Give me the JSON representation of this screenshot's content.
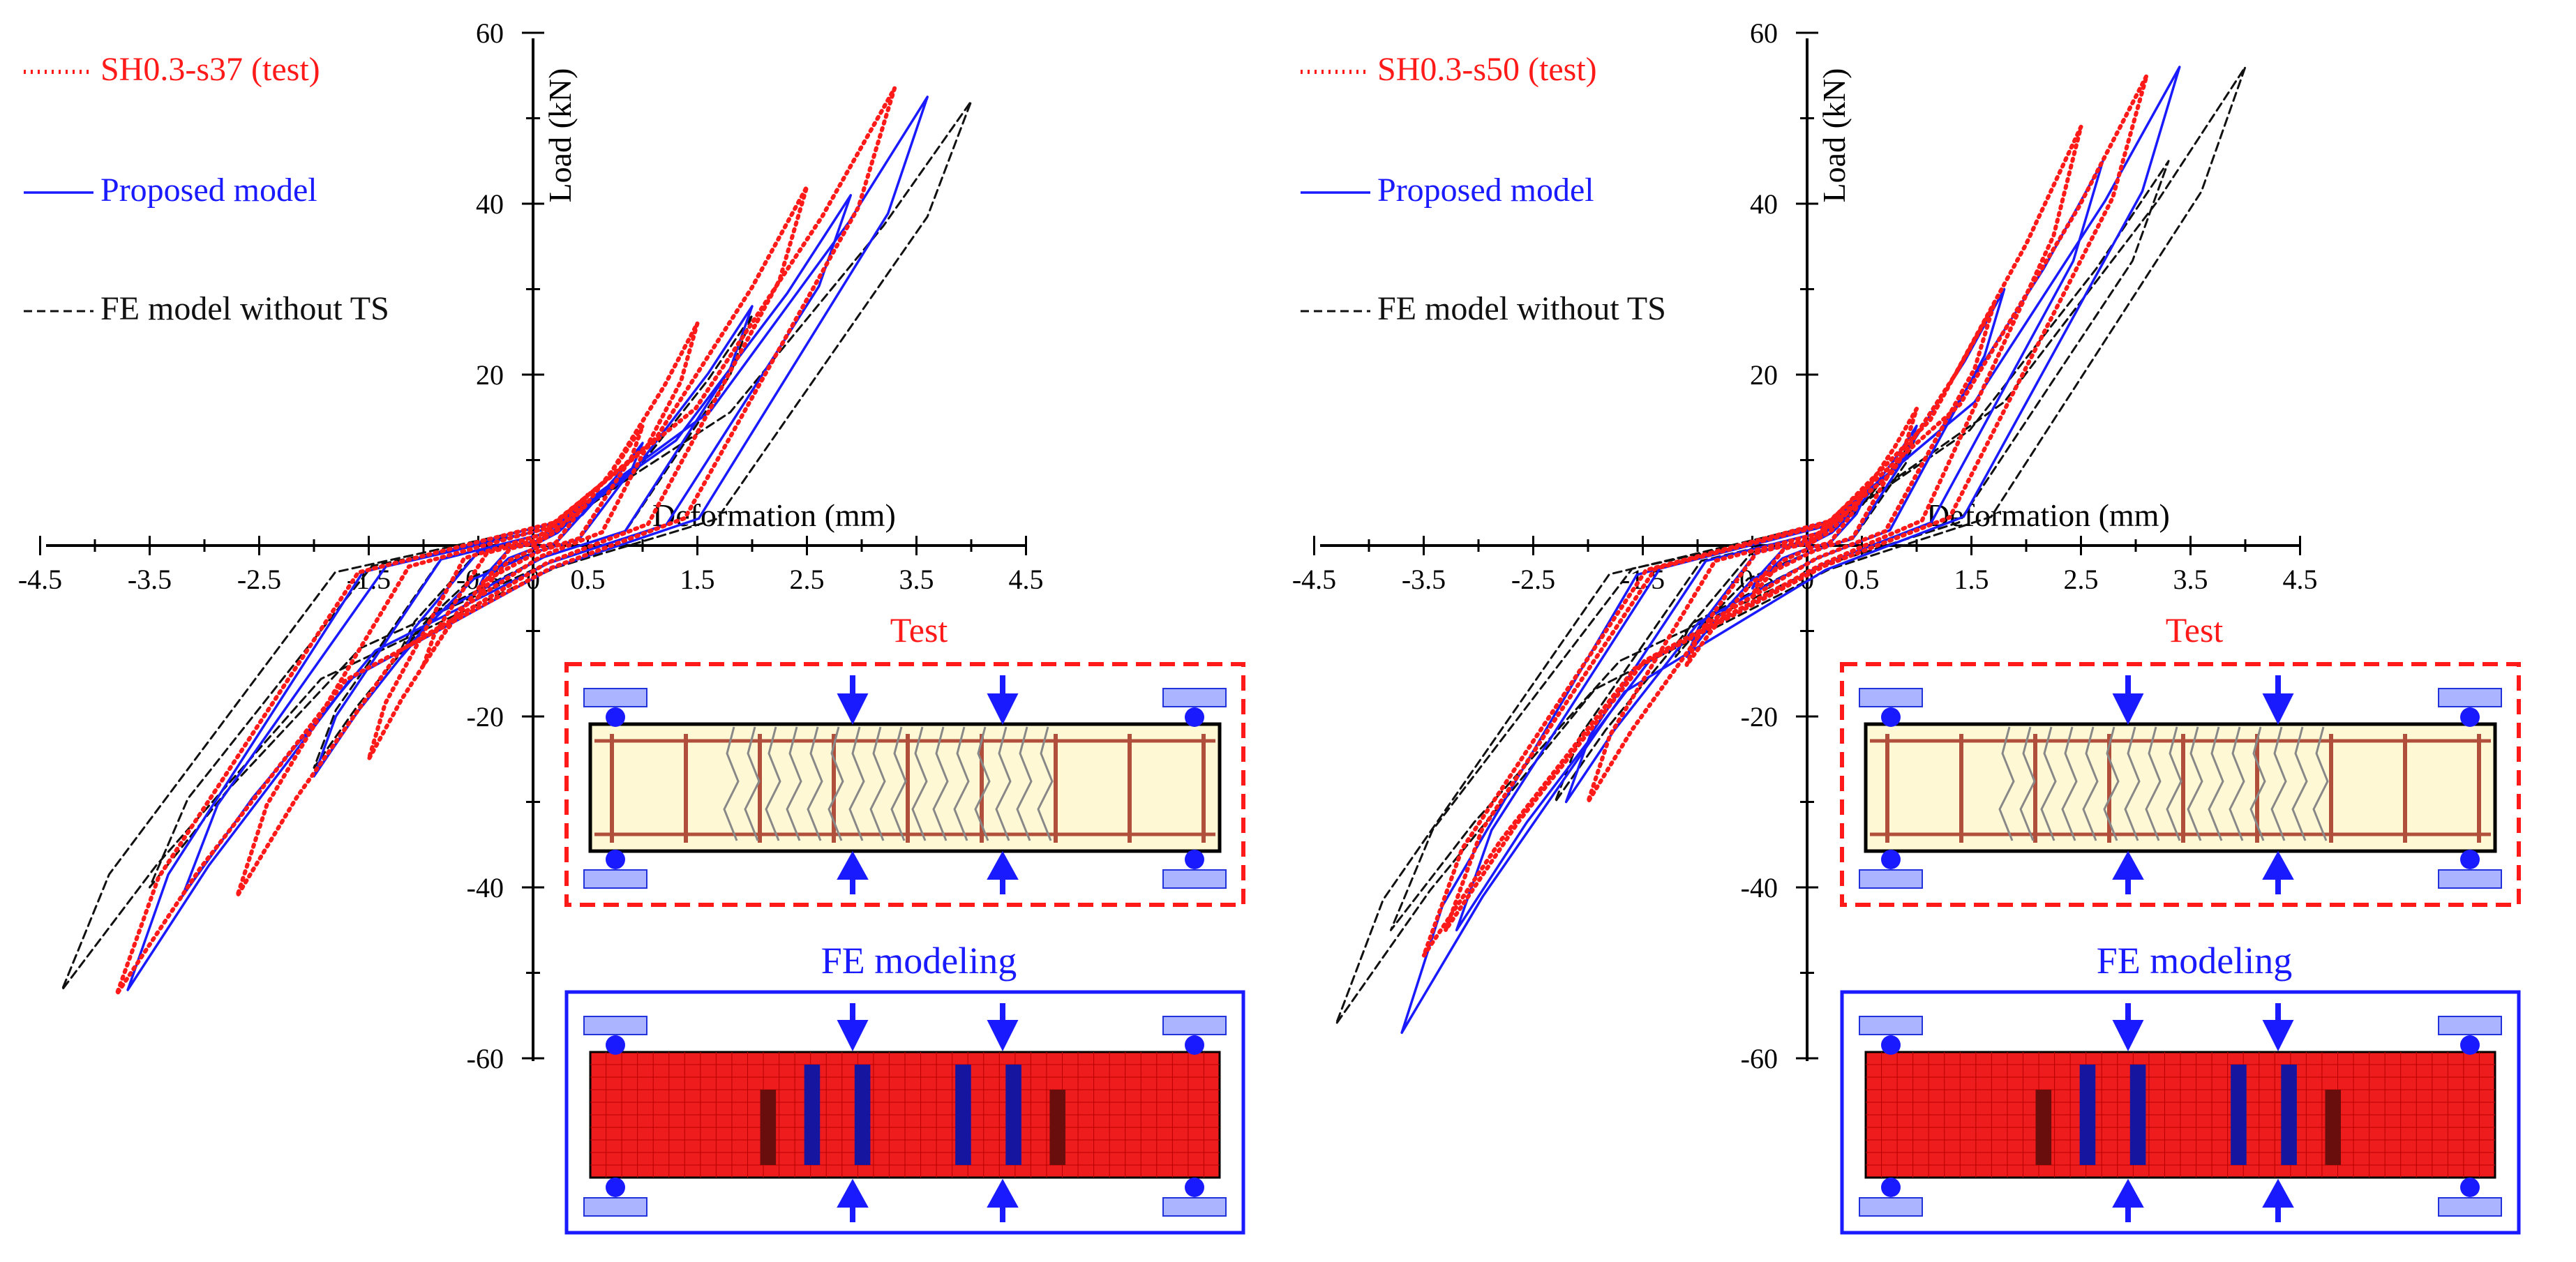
{
  "chart_data": [
    {
      "type": "line",
      "xlabel": "Deformation (mm)",
      "ylabel": "Load (kN)",
      "xlim": [
        -4.5,
        4.5
      ],
      "ylim": [
        -60,
        60
      ],
      "x_ticks": [
        "-4.5",
        "-3.5",
        "-2.5",
        "-1.5",
        "-0.5",
        "0",
        "0.5",
        "1.5",
        "2.5",
        "3.5",
        "4.5"
      ],
      "y_ticks": [
        "60",
        "40",
        "20",
        "-20",
        "-40",
        "-60"
      ],
      "legend_position": "top-left",
      "series": [
        {
          "name": "SH0.3-s37 (test)",
          "color": "#ff1a1a",
          "style": "dotted",
          "amplitudes": [
            [
              0.5,
              6
            ],
            [
              1.0,
              14
            ],
            [
              1.5,
              26
            ],
            [
              2.5,
              42
            ],
            [
              3.3,
              53.5
            ]
          ],
          "neg_amplitudes": [
            [
              -0.5,
              -6
            ],
            [
              -1.0,
              -14
            ],
            [
              -1.5,
              -25
            ],
            [
              -2.7,
              -41
            ],
            [
              -3.8,
              -52.5
            ]
          ]
        },
        {
          "name": "Proposed model",
          "color": "#1a1aff",
          "style": "solid",
          "amplitudes": [
            [
              0.5,
              5
            ],
            [
              1.0,
              12
            ],
            [
              2.0,
              28
            ],
            [
              2.9,
              41
            ],
            [
              3.6,
              52.5
            ]
          ],
          "neg_amplitudes": [
            [
              -0.5,
              -5
            ],
            [
              -1.2,
              -13
            ],
            [
              -2.0,
              -27
            ],
            [
              -3.2,
              -41
            ],
            [
              -3.7,
              -52
            ]
          ]
        },
        {
          "name": "FE model without TS",
          "color": "#111111",
          "style": "dashed",
          "amplitudes": [
            [
              0.5,
              5
            ],
            [
              1.0,
              12
            ],
            [
              2.0,
              27
            ],
            [
              2.9,
              41
            ],
            [
              4.0,
              52
            ]
          ],
          "neg_amplitudes": [
            [
              -0.5,
              -5
            ],
            [
              -1.2,
              -12
            ],
            [
              -2.0,
              -26
            ],
            [
              -3.5,
              -40
            ],
            [
              -4.3,
              -52
            ]
          ]
        }
      ],
      "insets": {
        "test_label": "Test",
        "fe_label": "FE modeling"
      }
    },
    {
      "type": "line",
      "xlabel": "Deformation (mm)",
      "ylabel": "Load (kN)",
      "xlim": [
        -4.5,
        4.5
      ],
      "ylim": [
        -60,
        60
      ],
      "x_ticks": [
        "-4.5",
        "-3.5",
        "-2.5",
        "-1.5",
        "-0.5",
        "0",
        "0.5",
        "1.5",
        "2.5",
        "3.5",
        "4.5"
      ],
      "y_ticks": [
        "60",
        "40",
        "20",
        "-20",
        "-40",
        "-60"
      ],
      "legend_position": "top-left",
      "series": [
        {
          "name": "SH0.3-s50 (test)",
          "color": "#ff1a1a",
          "style": "dotted",
          "amplitudes": [
            [
              0.5,
              6
            ],
            [
              1.0,
              16
            ],
            [
              1.7,
              28
            ],
            [
              2.5,
              49
            ],
            [
              3.1,
              55
            ]
          ],
          "neg_amplitudes": [
            [
              -0.5,
              -6
            ],
            [
              -1.1,
              -14
            ],
            [
              -2.0,
              -30
            ],
            [
              -3.3,
              -45
            ],
            [
              -3.5,
              -48
            ]
          ]
        },
        {
          "name": "Proposed model",
          "color": "#1a1aff",
          "style": "solid",
          "amplitudes": [
            [
              0.5,
              5
            ],
            [
              1.0,
              14
            ],
            [
              1.8,
              30
            ],
            [
              2.7,
              45
            ],
            [
              3.4,
              56
            ]
          ],
          "neg_amplitudes": [
            [
              -0.5,
              -5
            ],
            [
              -1.1,
              -13
            ],
            [
              -2.2,
              -30
            ],
            [
              -3.2,
              -45
            ],
            [
              -3.7,
              -57
            ]
          ]
        },
        {
          "name": "FE model without TS",
          "color": "#111111",
          "style": "dashed",
          "amplitudes": [
            [
              0.5,
              5
            ],
            [
              1.0,
              13
            ],
            [
              1.8,
              30
            ],
            [
              3.3,
              45
            ],
            [
              4.0,
              56
            ]
          ],
          "neg_amplitudes": [
            [
              -0.5,
              -5
            ],
            [
              -1.2,
              -13
            ],
            [
              -2.3,
              -30
            ],
            [
              -3.8,
              -45
            ],
            [
              -4.3,
              -56
            ]
          ]
        }
      ],
      "insets": {
        "test_label": "Test",
        "fe_label": "FE modeling"
      }
    }
  ]
}
